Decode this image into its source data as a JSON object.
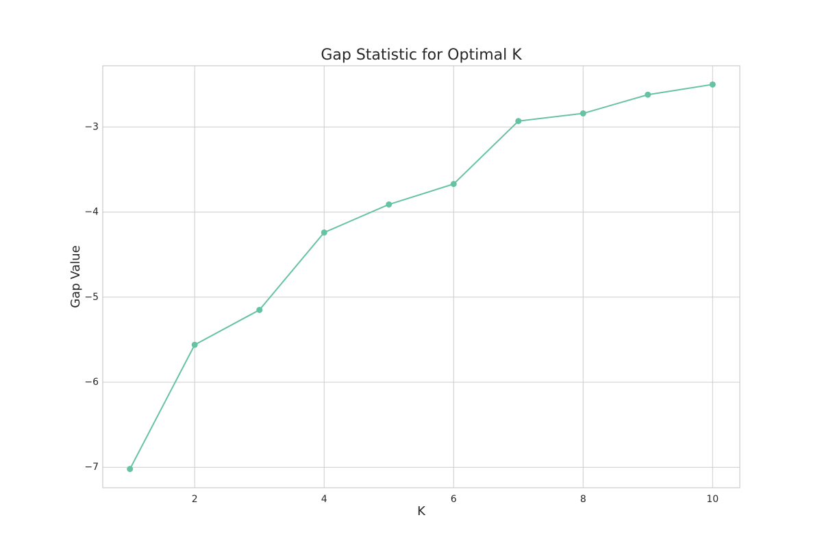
{
  "chart_data": {
    "type": "line",
    "title": "Gap Statistic for Optimal K",
    "xlabel": "K",
    "ylabel": "Gap Value",
    "x": [
      1,
      2,
      3,
      4,
      5,
      6,
      7,
      8,
      9,
      10
    ],
    "series": [
      {
        "values": [
          -7.02,
          -5.56,
          -5.15,
          -4.24,
          -3.91,
          -3.67,
          -2.93,
          -2.84,
          -2.62,
          -2.5
        ],
        "color": "#66c2a5",
        "marker": "circle"
      }
    ],
    "xlim": [
      0.58,
      10.42
    ],
    "ylim": [
      -7.24,
      -2.28
    ],
    "xticks": [
      2,
      4,
      6,
      8,
      10
    ],
    "xtick_labels": [
      "2",
      "4",
      "6",
      "8",
      "10"
    ],
    "yticks": [
      -7,
      -6,
      -5,
      -4,
      -3
    ],
    "ytick_labels": [
      "−7",
      "−6",
      "−5",
      "−4",
      "−3"
    ],
    "grid": true,
    "legend": "none"
  }
}
